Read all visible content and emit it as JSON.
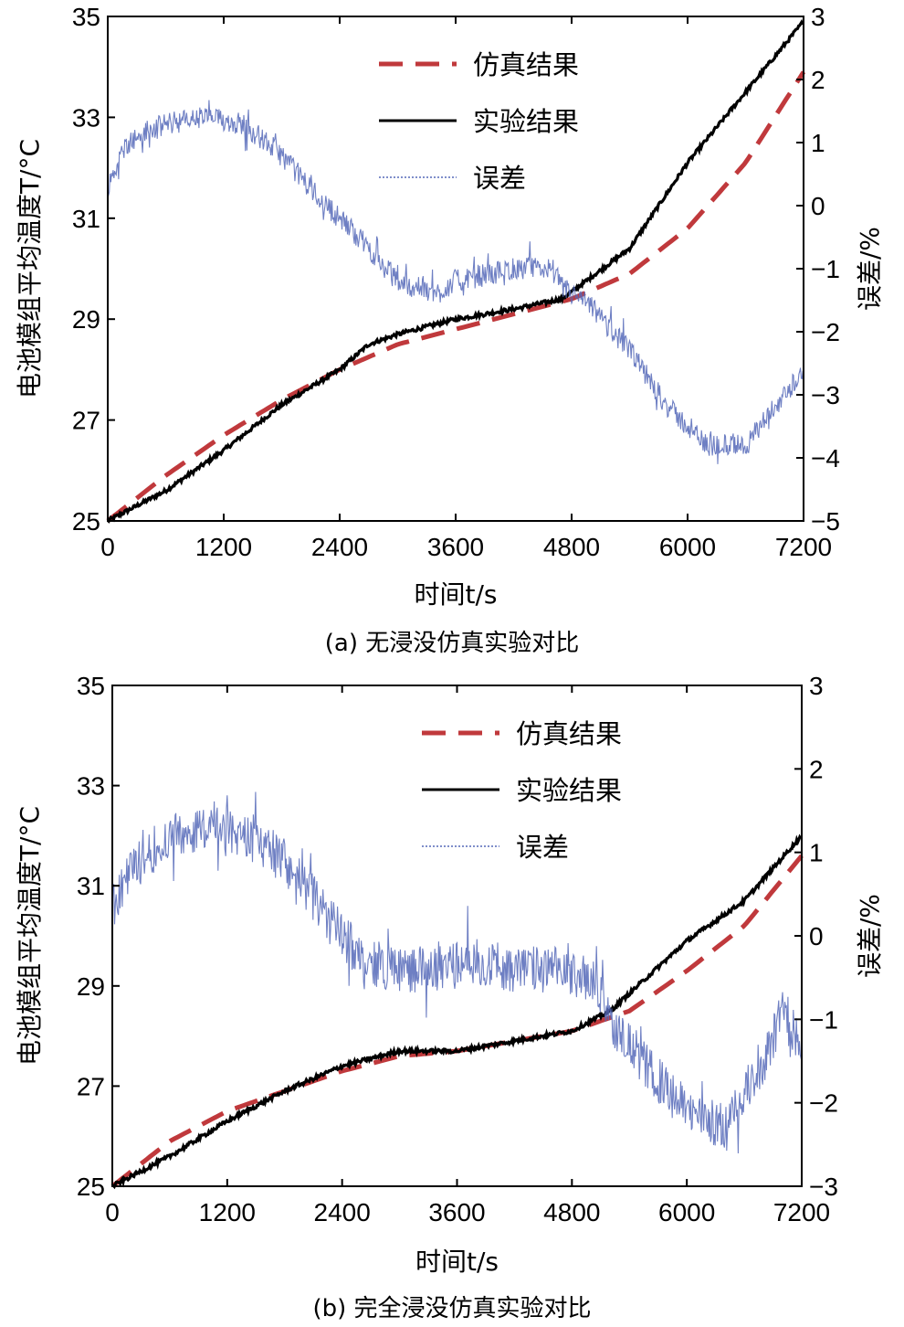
{
  "chart_data": [
    {
      "type": "line",
      "caption": "(a) 无浸没仿真实验对比",
      "xlabel": "时间t/s",
      "ylabel_left": "电池模组平均温度T/°C",
      "ylabel_right": "误差/%",
      "xlim": [
        0,
        7200
      ],
      "ylim_left": [
        25,
        35
      ],
      "ylim_right": [
        -5,
        3
      ],
      "x_ticks": [
        "0",
        "1200",
        "2400",
        "3600",
        "4800",
        "6000",
        "7200"
      ],
      "y_ticks_left": [
        "25",
        "27",
        "29",
        "31",
        "33",
        "35"
      ],
      "y_ticks_right": [
        "−5",
        "−4",
        "−3",
        "−2",
        "−1",
        "0",
        "1",
        "2",
        "3"
      ],
      "legend": [
        "仿真结果",
        "实验结果",
        "误差"
      ],
      "legend_position": "top-center",
      "series": [
        {
          "name": "仿真结果",
          "axis": "left",
          "color": "#c0393c",
          "style": "dashed",
          "x": [
            0,
            600,
            1200,
            1800,
            2400,
            3000,
            3600,
            4200,
            4800,
            5400,
            6000,
            6600,
            7200
          ],
          "y": [
            25.0,
            25.9,
            26.7,
            27.4,
            28.0,
            28.5,
            28.8,
            29.1,
            29.4,
            29.9,
            30.8,
            32.1,
            33.9
          ]
        },
        {
          "name": "实验结果",
          "axis": "left",
          "color": "#000000",
          "style": "solid",
          "x": [
            0,
            600,
            1200,
            1800,
            2400,
            2700,
            3000,
            3600,
            4200,
            4700,
            5400,
            6000,
            6600,
            7200
          ],
          "y": [
            25.0,
            25.6,
            26.4,
            27.3,
            28.0,
            28.5,
            28.7,
            29.0,
            29.2,
            29.4,
            30.4,
            32.1,
            33.5,
            34.9
          ]
        },
        {
          "name": "误差",
          "axis": "right",
          "color": "#5568b8",
          "style": "thin",
          "x": [
            0,
            200,
            600,
            1000,
            1400,
            1800,
            2200,
            2600,
            3000,
            3400,
            3600,
            4200,
            4600,
            4700,
            5000,
            5400,
            5800,
            6200,
            6600,
            7000,
            7200
          ],
          "y": [
            0.3,
            1.0,
            1.3,
            1.4,
            1.3,
            0.8,
            0.1,
            -0.5,
            -1.2,
            -1.4,
            -1.2,
            -1.0,
            -1.0,
            -1.3,
            -1.6,
            -2.3,
            -3.2,
            -3.8,
            -3.8,
            -3.0,
            -2.6
          ]
        }
      ]
    },
    {
      "type": "line",
      "caption": "(b) 完全浸没仿真实验对比",
      "xlabel": "时间t/s",
      "ylabel_left": "电池模组平均温度T/°C",
      "ylabel_right": "误差/%",
      "xlim": [
        0,
        7200
      ],
      "ylim_left": [
        25,
        35
      ],
      "ylim_right": [
        -3,
        3
      ],
      "x_ticks": [
        "0",
        "1200",
        "2400",
        "3600",
        "4800",
        "6000",
        "7200"
      ],
      "y_ticks_left": [
        "25",
        "27",
        "29",
        "31",
        "33",
        "35"
      ],
      "y_ticks_right": [
        "−3",
        "−2",
        "−1",
        "0",
        "1",
        "2",
        "3"
      ],
      "legend": [
        "仿真结果",
        "实验结果",
        "误差"
      ],
      "legend_position": "top-center",
      "series": [
        {
          "name": "仿真结果",
          "axis": "left",
          "color": "#c0393c",
          "style": "dashed",
          "x": [
            0,
            600,
            1200,
            1800,
            2400,
            3000,
            3600,
            4200,
            4800,
            5400,
            6000,
            6600,
            7200
          ],
          "y": [
            25.0,
            25.9,
            26.5,
            26.9,
            27.3,
            27.6,
            27.7,
            27.9,
            28.1,
            28.5,
            29.3,
            30.2,
            31.6
          ]
        },
        {
          "name": "实验结果",
          "axis": "left",
          "color": "#000000",
          "style": "solid",
          "x": [
            0,
            600,
            1200,
            1800,
            2400,
            3000,
            3600,
            4200,
            4800,
            5200,
            6000,
            6600,
            7200
          ],
          "y": [
            25.0,
            25.6,
            26.3,
            26.9,
            27.4,
            27.7,
            27.7,
            27.9,
            28.1,
            28.5,
            29.9,
            30.7,
            32.0
          ]
        },
        {
          "name": "误差",
          "axis": "right",
          "color": "#5568b8",
          "style": "thin",
          "x": [
            0,
            200,
            600,
            1000,
            1400,
            1800,
            2200,
            2600,
            3000,
            3400,
            3800,
            4200,
            4600,
            5000,
            5200,
            5600,
            6000,
            6400,
            6800,
            7000,
            7200
          ],
          "y": [
            0.3,
            0.8,
            1.2,
            1.3,
            1.2,
            0.9,
            0.3,
            -0.3,
            -0.4,
            -0.4,
            -0.3,
            -0.4,
            -0.4,
            -0.5,
            -1.0,
            -1.6,
            -2.1,
            -2.3,
            -1.5,
            -0.9,
            -1.3
          ]
        }
      ]
    }
  ]
}
